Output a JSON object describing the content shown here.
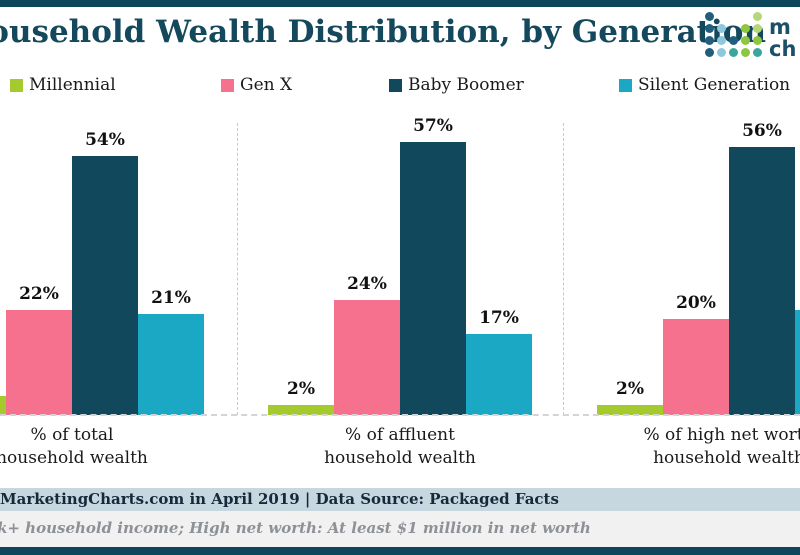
{
  "header": {
    "title": "Household Wealth Distribution, by Generation"
  },
  "logo": {
    "name": "marketingcharts-logo",
    "visible_text_top": "m",
    "visible_text_bottom": "ch",
    "dot_colors": {
      "navy": "#1f5f7d",
      "blue": "#8ec8dc",
      "teal": "#3aa79d",
      "green": "#8dc63f",
      "lightgreen": "#b5d876"
    },
    "dot_matrix": [
      [
        "navy",
        null,
        null,
        null,
        "lightgreen"
      ],
      [
        "navy",
        "blue",
        null,
        "green",
        "lightgreen"
      ],
      [
        "navy",
        "blue",
        "navy",
        "green",
        "green"
      ],
      [
        "navy",
        "blue",
        "teal",
        "green",
        "teal"
      ]
    ]
  },
  "legend": {
    "position": "top",
    "items": [
      {
        "label": "Millennial",
        "color": "#a4ca2e"
      },
      {
        "label": "Gen X",
        "color": "#f5718e"
      },
      {
        "label": "Baby Boomer",
        "color": "#12485c"
      },
      {
        "label": "Silent Generation",
        "color": "#1ba8c5"
      }
    ]
  },
  "chart_data": {
    "type": "bar",
    "title": "Household Wealth Distribution, by Generation",
    "unit": "%",
    "grid": false,
    "ylim": [
      0,
      62
    ],
    "categories": [
      "% of total household wealth",
      "% of affluent household wealth",
      "% of high net worth household wealth"
    ],
    "category_lines": [
      {
        "line1": "% of total",
        "line2": "household wealth"
      },
      {
        "line1": "% of affluent",
        "line2": "household wealth"
      },
      {
        "line1": "% of high net worth",
        "line2": "household wealth"
      }
    ],
    "series": [
      {
        "name": "Millennial",
        "color": "#a4ca2e",
        "values": [
          4,
          2,
          2
        ],
        "labels": [
          null,
          "2%",
          "2%"
        ]
      },
      {
        "name": "Gen X",
        "color": "#f5718e",
        "values": [
          22,
          24,
          20
        ],
        "labels": [
          "22%",
          "24%",
          "20%"
        ]
      },
      {
        "name": "Baby Boomer",
        "color": "#12485c",
        "values": [
          54,
          57,
          56
        ],
        "labels": [
          "54%",
          "57%",
          "56%"
        ]
      },
      {
        "name": "Silent Generation",
        "color": "#1ba8c5",
        "values": [
          21,
          17,
          22
        ],
        "labels": [
          "21%",
          "17%",
          null
        ]
      }
    ]
  },
  "footer": {
    "source_line": "MarketingCharts.com in April 2019 | Data Source: Packaged Facts",
    "note_line": "k+ household income; High net worth: At least $1 million in net worth"
  }
}
